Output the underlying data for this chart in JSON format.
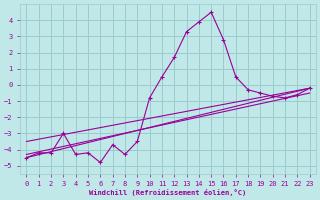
{
  "xlabel": "Windchill (Refroidissement éolien,°C)",
  "xlim": [
    -0.5,
    23.5
  ],
  "ylim": [
    -5.5,
    5.0
  ],
  "yticks": [
    -5,
    -4,
    -3,
    -2,
    -1,
    0,
    1,
    2,
    3,
    4
  ],
  "xticks": [
    0,
    1,
    2,
    3,
    4,
    5,
    6,
    7,
    8,
    9,
    10,
    11,
    12,
    13,
    14,
    15,
    16,
    17,
    18,
    19,
    20,
    21,
    22,
    23
  ],
  "bg_color": "#c0e8e8",
  "grid_color": "#99cccc",
  "line_color": "#990099",
  "curve1_x": [
    0,
    1,
    2,
    3,
    4,
    5,
    6,
    7,
    8,
    9,
    10,
    11,
    12,
    13,
    14,
    15,
    16,
    17,
    18,
    19,
    20,
    21,
    22,
    23
  ],
  "curve1_y": [
    -4.5,
    -4.2,
    -4.2,
    -3.0,
    -4.3,
    -4.2,
    -4.8,
    -3.7,
    -4.3,
    -3.5,
    -0.8,
    0.5,
    1.7,
    3.3,
    3.9,
    4.5,
    2.8,
    0.5,
    -0.3,
    -0.5,
    -0.7,
    -0.8,
    -0.6,
    -0.2
  ],
  "trendline1_x": [
    0,
    23
  ],
  "trendline1_y": [
    -4.5,
    -0.2
  ],
  "trendline2_x": [
    0,
    23
  ],
  "trendline2_y": [
    -4.3,
    -0.5
  ],
  "trendline3_x": [
    0,
    23
  ],
  "trendline3_y": [
    -3.5,
    -0.2
  ]
}
